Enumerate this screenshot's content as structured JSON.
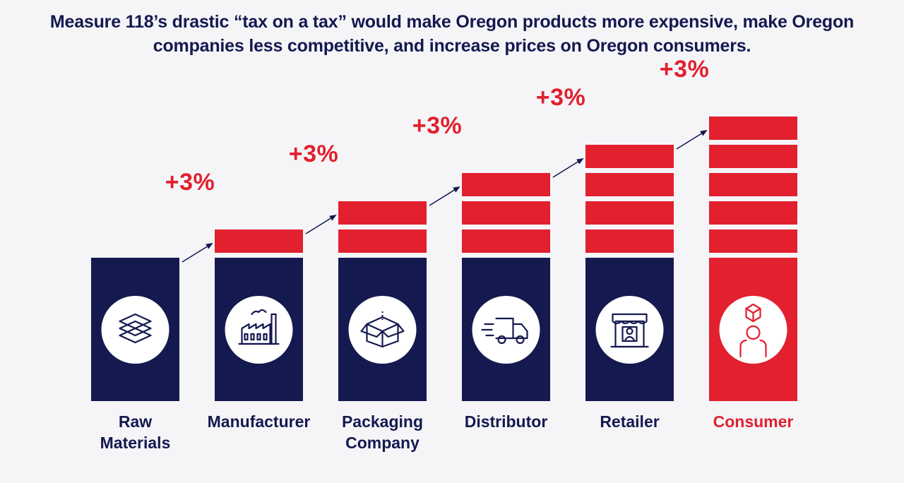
{
  "headline": {
    "line1": "Measure 118’s drastic “tax on a tax” would make Oregon products more expensive, make Oregon",
    "line2": "companies less competitive, and increase prices on Oregon consumers."
  },
  "stages": [
    {
      "id": "raw-materials",
      "label_lines": [
        "Raw",
        "Materials"
      ],
      "icon": "layers-icon",
      "tax_layers": 0,
      "increase_label": "",
      "base_color": "#14194f"
    },
    {
      "id": "manufacturer",
      "label_lines": [
        "Manufacturer"
      ],
      "icon": "factory-icon",
      "tax_layers": 1,
      "increase_label": "+3%",
      "base_color": "#14194f"
    },
    {
      "id": "packaging-company",
      "label_lines": [
        "Packaging",
        "Company"
      ],
      "icon": "box-icon",
      "tax_layers": 2,
      "increase_label": "+3%",
      "base_color": "#14194f"
    },
    {
      "id": "distributor",
      "label_lines": [
        "Distributor"
      ],
      "icon": "truck-icon",
      "tax_layers": 3,
      "increase_label": "+3%",
      "base_color": "#14194f"
    },
    {
      "id": "retailer",
      "label_lines": [
        "Retailer"
      ],
      "icon": "storefront-icon",
      "tax_layers": 4,
      "increase_label": "+3%",
      "base_color": "#14194f"
    },
    {
      "id": "consumer",
      "label_lines": [
        "Consumer"
      ],
      "icon": "consumer-icon",
      "tax_layers": 5,
      "increase_label": "+3%",
      "base_color": "#e2202e"
    }
  ],
  "colors": {
    "navy": "#14194f",
    "red": "#e2202e",
    "background": "#f5f5f8"
  }
}
